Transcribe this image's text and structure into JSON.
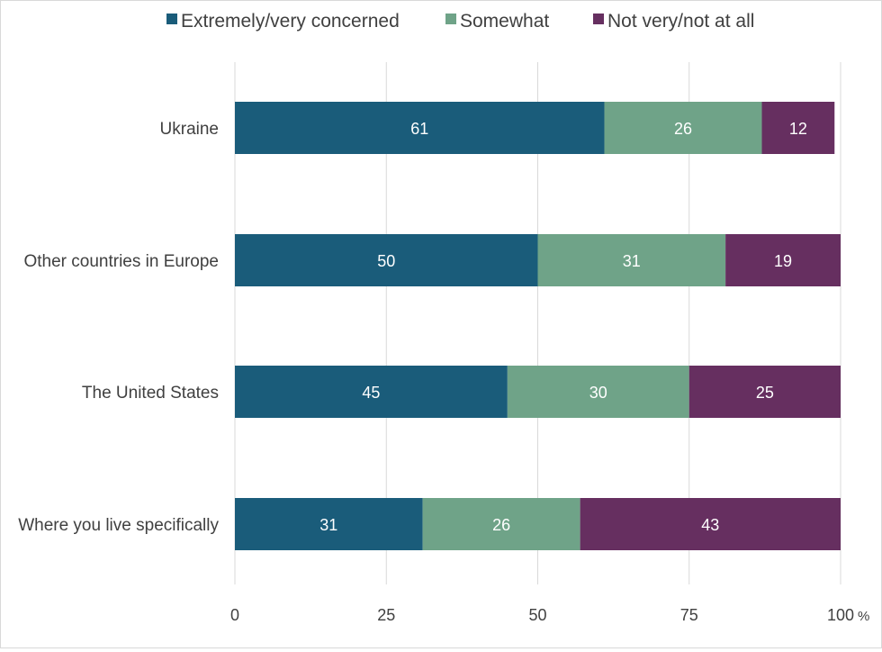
{
  "chart_data": {
    "type": "bar",
    "orientation": "horizontal",
    "stacked": true,
    "categories": [
      "Ukraine",
      "Other countries in Europe",
      "The United States",
      "Where you live specifically"
    ],
    "series": [
      {
        "name": "Extremely/very concerned",
        "color": "#1a5c7a",
        "values": [
          61,
          50,
          45,
          31
        ]
      },
      {
        "name": "Somewhat",
        "color": "#6fa388",
        "values": [
          26,
          31,
          30,
          26
        ]
      },
      {
        "name": "Not very/not at all",
        "color": "#662f60",
        "values": [
          12,
          19,
          25,
          43
        ]
      }
    ],
    "x_ticks": [
      "0",
      "25",
      "50",
      "75",
      "100"
    ],
    "xlim": [
      0,
      100
    ],
    "x_unit": "%",
    "legend_position": "top-center",
    "grid": "vertical"
  }
}
